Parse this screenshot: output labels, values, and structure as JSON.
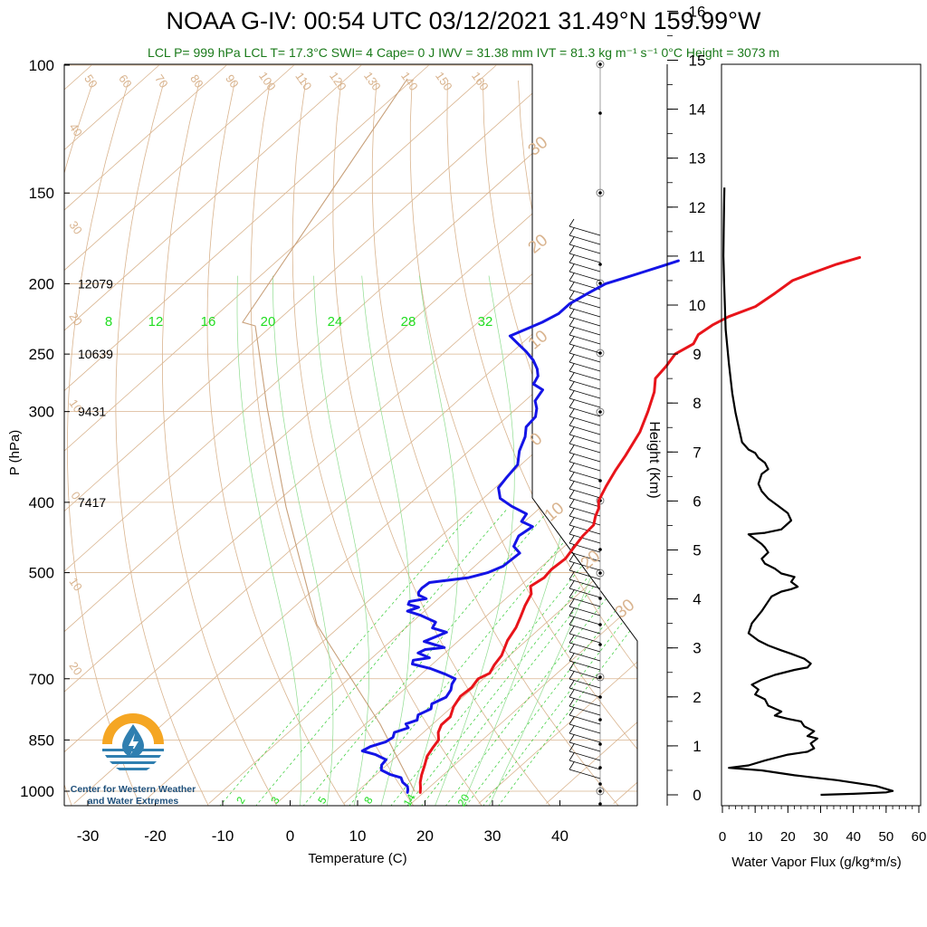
{
  "title": "NOAA G-IV: 00:54 UTC 03/12/2021  31.49°N 159.99°W",
  "subtitle": "LCL P= 999 hPa  LCL T= 17.3°C  SWI= 4  Cape= 0 J  IWV = 31.38 mm  IVT = 81.3 kg m⁻¹ s⁻¹  0°C Height = 3073 m",
  "logo": {
    "line1": "Center for Western Weather",
    "line2": "and Water Extremes",
    "icon": "water-drop-logo-icon",
    "colors": {
      "sun": "#f5a623",
      "water": "#2f7fb0"
    }
  },
  "colors": {
    "temperature": "#e8141a",
    "dewpoint": "#1414e6",
    "isotherm": "#d9b48f",
    "mixing_ratio": "#33cc33",
    "flux": "#000000"
  },
  "chart_data": [
    {
      "type": "line",
      "title": "",
      "xlabel": "Temperature (C)",
      "ylabel": "P (hPa)",
      "xlim": [
        -34,
        50
      ],
      "ylim": [
        1040,
        100
      ],
      "y_scale": "log",
      "x_ticks": [
        "-30",
        "-20",
        "-10",
        "0",
        "10",
        "20",
        "30",
        "40"
      ],
      "y_ticks": [
        "100",
        "150",
        "200",
        "250",
        "300",
        "400",
        "500",
        "700",
        "850",
        "1000"
      ],
      "height_labels": [
        {
          "p": 200,
          "text": "12079"
        },
        {
          "p": 250,
          "text": "10639"
        },
        {
          "p": 300,
          "text": "9431"
        },
        {
          "p": 400,
          "text": "7417"
        }
      ],
      "mixing_ratio_labels_top": [
        "8",
        "12",
        "16",
        "20",
        "24",
        "28",
        "32"
      ],
      "mixing_ratio_labels_bottom": [
        "2",
        "3",
        "5",
        "8",
        "14",
        "20"
      ],
      "dry_adiabat_labels": [
        "50",
        "60",
        "70",
        "80",
        "90",
        "100",
        "110",
        "120",
        "130",
        "140",
        "150",
        "160"
      ],
      "skew_labels_left": [
        "40",
        "30",
        "20",
        "10",
        "0",
        "10",
        "20"
      ],
      "skew_labels_right": [
        "30",
        "20",
        "10",
        "0",
        "10",
        "20",
        "30"
      ],
      "series": [
        {
          "name": "Temperature",
          "points": [
            [
              19.5,
              1004
            ],
            [
              18.8,
              990
            ],
            [
              17.8,
              972
            ],
            [
              16.8,
              950
            ],
            [
              15.6,
              920
            ],
            [
              14.5,
              895
            ],
            [
              13.9,
              870
            ],
            [
              13.5,
              850
            ],
            [
              12.2,
              830
            ],
            [
              11.4,
              810
            ],
            [
              11.4,
              790
            ],
            [
              10.2,
              765
            ],
            [
              9.5,
              740
            ],
            [
              9.7,
              720
            ],
            [
              9.2,
              700
            ],
            [
              10.0,
              688
            ],
            [
              9.3,
              670
            ],
            [
              8.8,
              650
            ],
            [
              7.2,
              620
            ],
            [
              6.3,
              595
            ],
            [
              5.2,
              575
            ],
            [
              4.0,
              555
            ],
            [
              3.0,
              535
            ],
            [
              1.6,
              522
            ],
            [
              2.2,
              508
            ],
            [
              1.9,
              495
            ],
            [
              2.2,
              478
            ],
            [
              1.6,
              462
            ],
            [
              1.0,
              445
            ],
            [
              0.8,
              430
            ],
            [
              -0.4,
              418
            ],
            [
              -1.2,
              408
            ],
            [
              -2.5,
              398
            ],
            [
              -3.8,
              380
            ],
            [
              -5.0,
              362
            ],
            [
              -6.0,
              345
            ],
            [
              -7.8,
              320
            ],
            [
              -10.0,
              300
            ],
            [
              -12.3,
              282
            ],
            [
              -14.4,
              270
            ],
            [
              -14.8,
              260
            ],
            [
              -15.5,
              250
            ],
            [
              -14.5,
              242
            ],
            [
              -15.3,
              235
            ],
            [
              -14.8,
              228
            ],
            [
              -13.8,
              222
            ],
            [
              -11.5,
              215
            ],
            [
              -10.8,
              206
            ],
            [
              -10.3,
              198
            ],
            [
              -8.5,
              193
            ],
            [
              -6.5,
              188
            ],
            [
              -4.2,
              184
            ]
          ]
        },
        {
          "name": "Dewpoint",
          "points": [
            [
              17.6,
              1004
            ],
            [
              17.2,
              995
            ],
            [
              16.6,
              985
            ],
            [
              15.2,
              972
            ],
            [
              14.2,
              958
            ],
            [
              12.0,
              948
            ],
            [
              10.0,
              935
            ],
            [
              9.2,
              920
            ],
            [
              9.0,
              905
            ],
            [
              6.5,
              890
            ],
            [
              4.0,
              880
            ],
            [
              4.5,
              868
            ],
            [
              6.0,
              855
            ],
            [
              6.3,
              843
            ],
            [
              5.7,
              830
            ],
            [
              7.0,
              818
            ],
            [
              6.0,
              808
            ],
            [
              7.0,
              798
            ],
            [
              6.3,
              785
            ],
            [
              7.2,
              770
            ],
            [
              6.5,
              758
            ],
            [
              7.5,
              742
            ],
            [
              7.0,
              725
            ],
            [
              6.2,
              712
            ],
            [
              5.8,
              700
            ],
            [
              3.6,
              690
            ],
            [
              0.5,
              678
            ],
            [
              -3.0,
              668
            ],
            [
              -3.5,
              660
            ],
            [
              -1.5,
              655
            ],
            [
              -4.0,
              645
            ],
            [
              -3.5,
              638
            ],
            [
              -1.0,
              634
            ],
            [
              -3.0,
              628
            ],
            [
              -5.0,
              622
            ],
            [
              -4.0,
              612
            ],
            [
              -3.2,
              604
            ],
            [
              -6.0,
              596
            ],
            [
              -6.5,
              585
            ],
            [
              -10.0,
              572
            ],
            [
              -12.5,
              565
            ],
            [
              -11.5,
              558
            ],
            [
              -13.5,
              553
            ],
            [
              -13.8,
              548
            ],
            [
              -11.8,
              543
            ],
            [
              -13.5,
              537
            ],
            [
              -14.0,
              532
            ],
            [
              -14.2,
              525
            ],
            [
              -14.0,
              516
            ],
            [
              -9.0,
              508
            ],
            [
              -7.0,
              500
            ],
            [
              -5.8,
              490
            ],
            [
              -5.5,
              470
            ],
            [
              -7.5,
              460
            ],
            [
              -8.5,
              445
            ],
            [
              -8.0,
              432
            ],
            [
              -10.5,
              425
            ],
            [
              -11.0,
              415
            ],
            [
              -14.5,
              405
            ],
            [
              -17.5,
              395
            ],
            [
              -19.5,
              382
            ],
            [
              -20.0,
              370
            ],
            [
              -20.5,
              355
            ],
            [
              -22.5,
              340
            ],
            [
              -24.0,
              325
            ],
            [
              -25.5,
              315
            ],
            [
              -25.8,
              305
            ],
            [
              -27.0,
              297
            ],
            [
              -28.5,
              290
            ],
            [
              -29.2,
              280
            ],
            [
              -31.5,
              275
            ],
            [
              -32.2,
              268
            ],
            [
              -33.5,
              262
            ],
            [
              -35.5,
              255
            ],
            [
              -38.0,
              248
            ],
            [
              -40.5,
              242
            ],
            [
              -43.0,
              236
            ],
            [
              -42.0,
              232
            ],
            [
              -40.5,
              226
            ],
            [
              -39.5,
              220
            ],
            [
              -39.5,
              213
            ],
            [
              -38.5,
              206
            ],
            [
              -37.5,
              200
            ],
            [
              -35.5,
              196
            ],
            [
              -34.0,
              193
            ],
            [
              -32.0,
              189
            ],
            [
              -30.5,
              186
            ]
          ]
        }
      ],
      "wind_barb_column": "at right of diagram, about 46°C on the temperature scale",
      "grid": true
    },
    {
      "type": "line",
      "title": "",
      "xlabel": "Water Vapor Flux (g/kg*m/s)",
      "ylabel": "Height (Km)",
      "xlim": [
        0,
        60
      ],
      "ylim": [
        -0.3,
        16.5
      ],
      "x_ticks": [
        "0",
        "10",
        "20",
        "30",
        "40",
        "50",
        "60"
      ],
      "y_ticks": [
        "0",
        "1",
        "2",
        "3",
        "4",
        "5",
        "6",
        "7",
        "8",
        "9",
        "10",
        "11",
        "12",
        "13",
        "14",
        "15",
        "16"
      ],
      "series": [
        {
          "name": "Water Vapor Flux",
          "points": [
            [
              30,
              0.0
            ],
            [
              40,
              0.02
            ],
            [
              50,
              0.05
            ],
            [
              52,
              0.08
            ],
            [
              47,
              0.18
            ],
            [
              35,
              0.3
            ],
            [
              22,
              0.4
            ],
            [
              12,
              0.5
            ],
            [
              2,
              0.55
            ],
            [
              8,
              0.6
            ],
            [
              13,
              0.7
            ],
            [
              20,
              0.82
            ],
            [
              26,
              0.88
            ],
            [
              28,
              0.95
            ],
            [
              27,
              1.05
            ],
            [
              29,
              1.15
            ],
            [
              26,
              1.2
            ],
            [
              28,
              1.3
            ],
            [
              25,
              1.4
            ],
            [
              24,
              1.5
            ],
            [
              20,
              1.55
            ],
            [
              16,
              1.62
            ],
            [
              18,
              1.7
            ],
            [
              14,
              1.82
            ],
            [
              13,
              1.95
            ],
            [
              10,
              2.05
            ],
            [
              11,
              2.15
            ],
            [
              9,
              2.25
            ],
            [
              12,
              2.35
            ],
            [
              16,
              2.45
            ],
            [
              22,
              2.55
            ],
            [
              26,
              2.6
            ],
            [
              27,
              2.68
            ],
            [
              25,
              2.78
            ],
            [
              21,
              2.88
            ],
            [
              18,
              2.95
            ],
            [
              14,
              3.05
            ],
            [
              11,
              3.15
            ],
            [
              8,
              3.3
            ],
            [
              9,
              3.5
            ],
            [
              12,
              3.75
            ],
            [
              14,
              3.95
            ],
            [
              15,
              4.05
            ],
            [
              18,
              4.15
            ],
            [
              21,
              4.2
            ],
            [
              23,
              4.25
            ],
            [
              21,
              4.35
            ],
            [
              22,
              4.45
            ],
            [
              18,
              4.52
            ],
            [
              16,
              4.62
            ],
            [
              13,
              4.72
            ],
            [
              12,
              4.82
            ],
            [
              14,
              4.95
            ],
            [
              13,
              5.05
            ],
            [
              12,
              5.12
            ],
            [
              10,
              5.22
            ],
            [
              8,
              5.32
            ],
            [
              13,
              5.35
            ],
            [
              18,
              5.42
            ],
            [
              21,
              5.6
            ],
            [
              20,
              5.75
            ],
            [
              17,
              5.9
            ],
            [
              14,
              6.05
            ],
            [
              12,
              6.2
            ],
            [
              11,
              6.35
            ],
            [
              12,
              6.55
            ],
            [
              14,
              6.65
            ],
            [
              13,
              6.78
            ],
            [
              11,
              6.88
            ],
            [
              10,
              6.98
            ],
            [
              8,
              7.05
            ],
            [
              6,
              7.2
            ],
            [
              5,
              7.5
            ],
            [
              4,
              7.8
            ],
            [
              3,
              8.2
            ],
            [
              2,
              8.8
            ],
            [
              1,
              9.5
            ],
            [
              0.5,
              10.5
            ],
            [
              0.3,
              11.0
            ],
            [
              0.4,
              11.5
            ],
            [
              0.5,
              12.0
            ],
            [
              0.6,
              12.4
            ]
          ]
        }
      ],
      "grid": false
    }
  ]
}
